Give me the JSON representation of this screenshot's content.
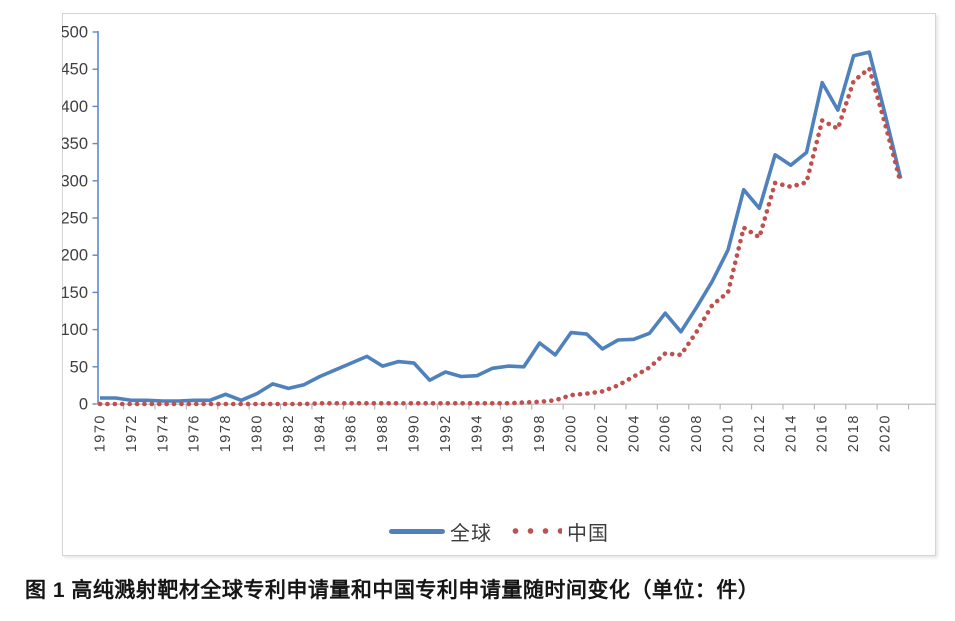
{
  "figure": {
    "caption": "图 1  高纯溅射靶材全球专利申请量和中国专利申请量随时间变化（单位：件）"
  },
  "colors": {
    "global_line": "#4f81bd",
    "china_line": "#c0504d",
    "y_axis": "#5e8ac7",
    "x_axis": "#b7b7b7",
    "tick_text": "#3f3f3f",
    "frame_border": "#d4d4d4"
  },
  "chart_data": {
    "type": "line",
    "title": "",
    "xlabel": "",
    "ylabel": "",
    "x_start": 1970,
    "x_end": 2021,
    "ylim": [
      0,
      500
    ],
    "y_ticks": [
      0,
      50,
      100,
      150,
      200,
      250,
      300,
      350,
      400,
      450,
      500
    ],
    "x_tick_labels": [
      "1970",
      "1972",
      "1974",
      "1976",
      "1978",
      "1980",
      "1982",
      "1984",
      "1986",
      "1988",
      "1990",
      "1992",
      "1994",
      "1996",
      "1998",
      "2000",
      "2002",
      "2004",
      "2006",
      "2008",
      "2010",
      "2012",
      "2014",
      "2016",
      "2018",
      "2020"
    ],
    "grid": false,
    "legend_position": "bottom",
    "series": [
      {
        "id": "global",
        "name": "全球",
        "style": "solid",
        "color": "#4f81bd",
        "values": [
          8,
          8,
          5,
          5,
          4,
          4,
          5,
          5,
          13,
          5,
          14,
          27,
          21,
          26,
          37,
          46,
          55,
          64,
          51,
          57,
          55,
          32,
          43,
          37,
          38,
          48,
          51,
          50,
          82,
          66,
          96,
          94,
          74,
          86,
          87,
          95,
          122,
          97,
          130,
          165,
          207,
          288,
          263,
          335,
          321,
          338,
          432,
          395,
          468,
          473,
          390,
          303
        ]
      },
      {
        "id": "china",
        "name": "中国",
        "style": "dotted",
        "color": "#c0504d",
        "values": [
          0,
          0,
          0,
          0,
          0,
          0,
          0,
          0,
          0,
          0,
          0,
          0,
          0,
          0,
          1,
          1,
          1,
          1,
          1,
          1,
          1,
          1,
          1,
          1,
          1,
          1,
          1,
          2,
          3,
          5,
          12,
          14,
          17,
          25,
          37,
          49,
          68,
          66,
          97,
          133,
          150,
          237,
          224,
          297,
          292,
          298,
          381,
          370,
          434,
          451,
          377,
          297
        ]
      }
    ]
  }
}
